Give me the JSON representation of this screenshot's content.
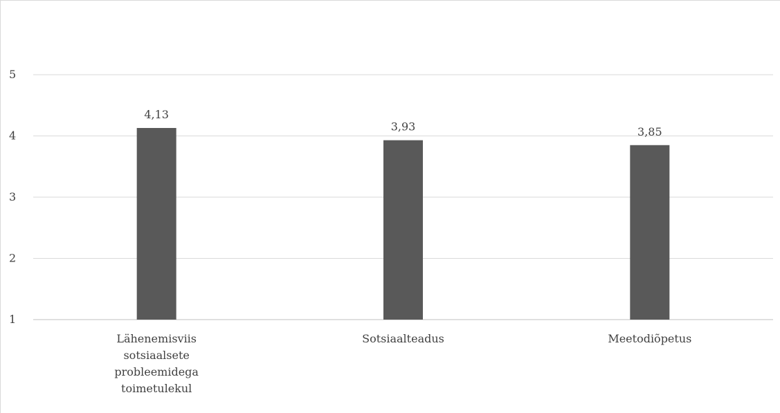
{
  "chart_data": {
    "type": "bar",
    "title": "",
    "xlabel": "",
    "ylabel": "",
    "categories": [
      [
        "Lähenemisviis",
        "sotsiaalsete",
        "probleemidega",
        "toimetulekul"
      ],
      [
        "Sotsiaalteadus"
      ],
      [
        "Meetodiõpetus"
      ]
    ],
    "values": [
      4.13,
      3.93,
      3.85
    ],
    "value_labels": [
      "4,13",
      "3,93",
      "3,85"
    ],
    "ylim": [
      1,
      5
    ],
    "yticks": [
      1,
      2,
      3,
      4,
      5
    ],
    "ytick_labels": [
      "1",
      "2",
      "3",
      "4",
      "5"
    ],
    "grid": true,
    "legend": "none",
    "colors": {
      "bar": "#595959",
      "grid": "#d9d9d9",
      "text": "#404040"
    }
  }
}
